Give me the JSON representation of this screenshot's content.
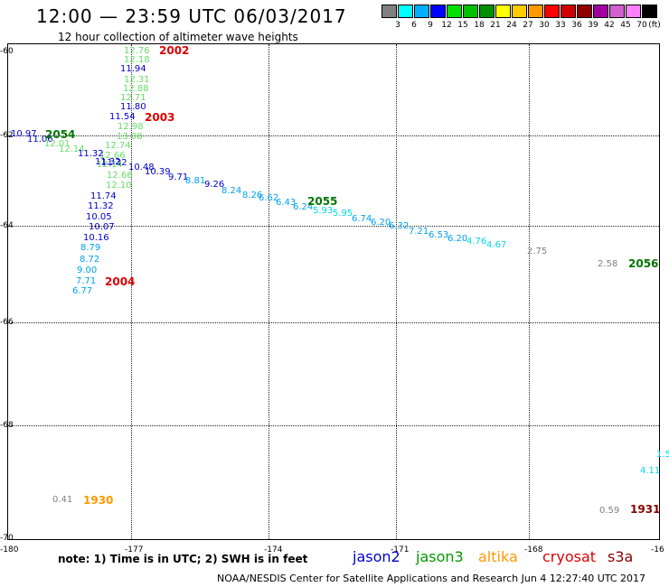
{
  "header": {
    "title": "12:00 — 23:59 UTC 06/03/2017",
    "subtitle": "12 hour collection of altimeter wave heights"
  },
  "legend": {
    "unit": "(ft)",
    "colors": [
      "#808080",
      "#00ffff",
      "#00b0ff",
      "#0000ff",
      "#00e000",
      "#00c000",
      "#009000",
      "#ffff00",
      "#ffcc00",
      "#ff9900",
      "#ff0000",
      "#d00000",
      "#900000",
      "#a000a0",
      "#d060d0",
      "#ff80ff",
      "#000000"
    ],
    "labels": [
      "3",
      "6",
      "9",
      "12",
      "15",
      "18",
      "21",
      "24",
      "27",
      "30",
      "33",
      "36",
      "39",
      "42",
      "45",
      "70"
    ]
  },
  "axes": {
    "lat_labels": [
      "-60",
      "-62",
      "-64",
      "-66",
      "-68",
      "-70"
    ],
    "lon_labels": [
      "-180",
      "-177",
      "-174",
      "-171",
      "-168",
      "-16"
    ]
  },
  "tracks": [
    {
      "v": "12.76",
      "c": "#66dd66"
    },
    {
      "v": "12.18",
      "c": "#66dd66"
    },
    {
      "v": "11.94",
      "c": "#0000cc"
    },
    {
      "v": "12.31",
      "c": "#66dd66"
    },
    {
      "v": "12.88",
      "c": "#66dd66"
    },
    {
      "v": "12.71",
      "c": "#66dd66"
    },
    {
      "v": "11.80",
      "c": "#0000cc"
    },
    {
      "v": "11.54",
      "c": "#0000cc"
    },
    {
      "v": "12.98",
      "c": "#66dd66"
    },
    {
      "v": "13.08",
      "c": "#66dd66"
    },
    {
      "v": "12.74",
      "c": "#66dd66"
    },
    {
      "v": "12.66",
      "c": "#66dd66"
    },
    {
      "v": "11.32",
      "c": "#0000cc"
    },
    {
      "v": "12.14",
      "c": "#66dd66"
    },
    {
      "v": "12.66",
      "c": "#66dd66"
    },
    {
      "v": "12.10",
      "c": "#66dd66"
    },
    {
      "v": "11.74",
      "c": "#0000cc"
    },
    {
      "v": "11.32",
      "c": "#0000cc"
    },
    {
      "v": "10.05",
      "c": "#0000cc"
    },
    {
      "v": "10.07",
      "c": "#0000cc"
    },
    {
      "v": "10.16",
      "c": "#0000cc"
    },
    {
      "v": "8.79",
      "c": "#00a0f0"
    },
    {
      "v": "8.72",
      "c": "#00a0f0"
    },
    {
      "v": "9.00",
      "c": "#00a0f0"
    },
    {
      "v": "7.71",
      "c": "#00a0f0"
    },
    {
      "v": "6.77",
      "c": "#00a0f0"
    },
    {
      "v": "10.97",
      "c": "#0000cc"
    },
    {
      "v": "11.06",
      "c": "#0000cc"
    },
    {
      "v": "12.01",
      "c": "#66dd66"
    },
    {
      "v": "12.14",
      "c": "#66dd66"
    },
    {
      "v": "11.32",
      "c": "#0000cc"
    },
    {
      "v": "11.32",
      "c": "#0000cc"
    },
    {
      "v": "10.48",
      "c": "#0000cc"
    },
    {
      "v": "10.39",
      "c": "#0000cc"
    },
    {
      "v": "9.71",
      "c": "#0000cc"
    },
    {
      "v": "8.81",
      "c": "#00a0f0"
    },
    {
      "v": "9.26",
      "c": "#0000cc"
    },
    {
      "v": "8.24",
      "c": "#00a0f0"
    },
    {
      "v": "8.26",
      "c": "#00a0f0"
    },
    {
      "v": "6.62",
      "c": "#00a0f0"
    },
    {
      "v": "6.43",
      "c": "#00a0f0"
    },
    {
      "v": "6.24",
      "c": "#00a0f0"
    },
    {
      "v": "5.93",
      "c": "#00d8e8"
    },
    {
      "v": "5.95",
      "c": "#00d8e8"
    },
    {
      "v": "6.74",
      "c": "#00a0f0"
    },
    {
      "v": "6.20",
      "c": "#00a0f0"
    },
    {
      "v": "6.32",
      "c": "#00a0f0"
    },
    {
      "v": "7.21",
      "c": "#00a0f0"
    },
    {
      "v": "6.53",
      "c": "#00a0f0"
    },
    {
      "v": "6.20",
      "c": "#00a0f0"
    },
    {
      "v": "4.76",
      "c": "#00d8e8"
    },
    {
      "v": "4.67",
      "c": "#00d8e8"
    },
    {
      "v": "2.75",
      "c": "#808080"
    },
    {
      "v": "2.58",
      "c": "#808080"
    },
    {
      "v": "1.5",
      "c": "#00d8e8"
    },
    {
      "v": "4.11",
      "c": "#00d8e8"
    },
    {
      "v": "0.41",
      "c": "#808080"
    },
    {
      "v": "0.59",
      "c": "#808080"
    }
  ],
  "times": [
    {
      "t": "2002",
      "c": "#dd0000"
    },
    {
      "t": "2003",
      "c": "#dd0000"
    },
    {
      "t": "2054",
      "c": "#007700"
    },
    {
      "t": "2055",
      "c": "#007700"
    },
    {
      "t": "2004",
      "c": "#dd0000"
    },
    {
      "t": "2056",
      "c": "#007700"
    },
    {
      "t": "1930",
      "c": "#ff9900"
    },
    {
      "t": "1931",
      "c": "#880000"
    }
  ],
  "footer": {
    "note": "note: 1) Time is in UTC; 2) SWH is in feet",
    "satellites": [
      {
        "name": "jason2",
        "c": "#0000cc"
      },
      {
        "name": "jason3",
        "c": "#009900"
      },
      {
        "name": "altika",
        "c": "#ff9900"
      },
      {
        "name": "cryosat",
        "c": "#dd0000"
      },
      {
        "name": "s3a",
        "c": "#880000"
      }
    ],
    "credit": "NOAA/NESDIS Center for Satellite Applications and Research    Jun  4 12:27:40 UTC 2017"
  }
}
